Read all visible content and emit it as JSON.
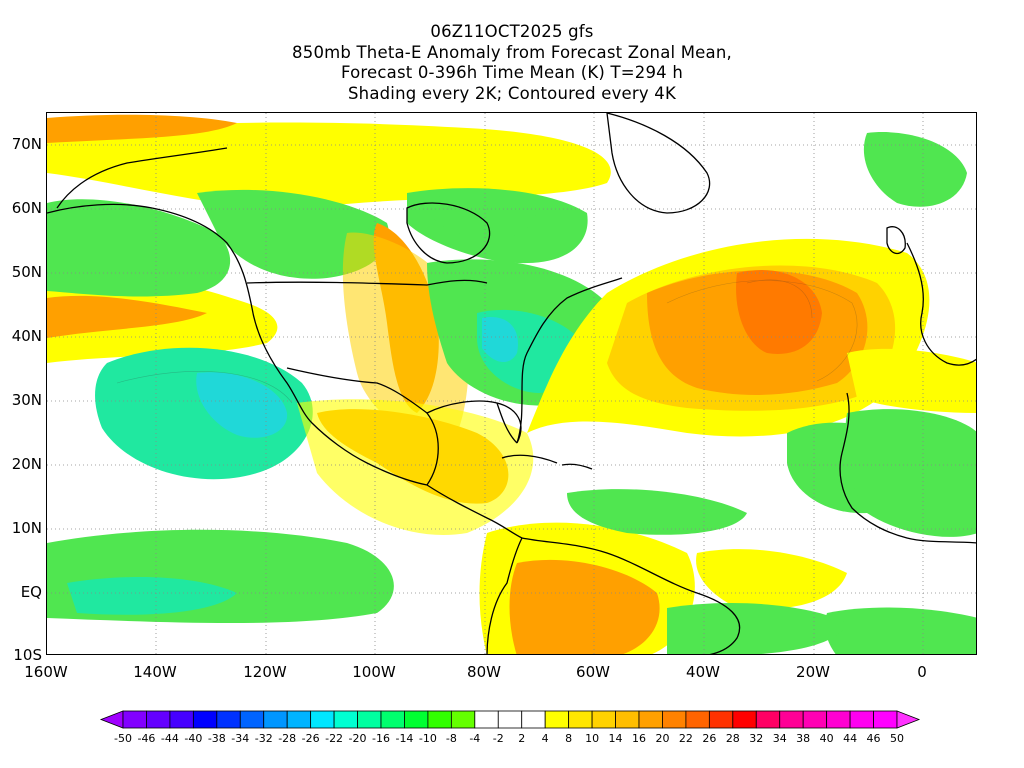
{
  "title": {
    "line1": "06Z11OCT2025 gfs",
    "line2": "850mb Theta-E Anomaly from Forecast Zonal Mean,",
    "line3": "Forecast 0-396h Time Mean (K) T=294 h",
    "line4": "Shading every 2K; Contoured every 4K"
  },
  "map": {
    "lon_range": [
      -160,
      10
    ],
    "lat_range": [
      -10,
      75
    ],
    "lat_labels": [
      "70N",
      "60N",
      "50N",
      "40N",
      "30N",
      "20N",
      "10N",
      "EQ",
      "10S"
    ],
    "lon_labels": [
      "160W",
      "140W",
      "120W",
      "100W",
      "80W",
      "60W",
      "40W",
      "20W",
      "0"
    ],
    "gridlines": "dotted"
  },
  "colorbar": {
    "labels": [
      "-50",
      "-46",
      "-44",
      "-40",
      "-38",
      "-34",
      "-32",
      "-28",
      "-26",
      "-22",
      "-20",
      "-16",
      "-14",
      "-10",
      "-8",
      "-4",
      "-2",
      "2",
      "4",
      "8",
      "10",
      "14",
      "16",
      "20",
      "22",
      "26",
      "28",
      "32",
      "34",
      "38",
      "40",
      "44",
      "46",
      "50"
    ],
    "colors": [
      "#a000ff",
      "#8200ff",
      "#6400ff",
      "#4600ff",
      "#0000ff",
      "#0032ff",
      "#0064ff",
      "#0096ff",
      "#00b4ff",
      "#00e6ff",
      "#00ffd2",
      "#00ffa0",
      "#00ff6e",
      "#00ff32",
      "#32ff00",
      "#64ff00",
      "#ffffff",
      "#ffffff",
      "#ffffff",
      "#ffff00",
      "#ffe600",
      "#ffd200",
      "#ffbe00",
      "#ffa000",
      "#ff8200",
      "#ff6400",
      "#ff3200",
      "#ff0000",
      "#ff0064",
      "#ff0096",
      "#ff00b4",
      "#ff00d2",
      "#ff00f0",
      "#ff00ff",
      "#ff32ff"
    ]
  },
  "colors": {
    "green": "#50e650",
    "teal": "#20e8a0",
    "cyan": "#20d8d8",
    "yellow": "#ffff00",
    "gold": "#ffd200",
    "orange": "#ffa000",
    "red_orange": "#ff7a00"
  }
}
